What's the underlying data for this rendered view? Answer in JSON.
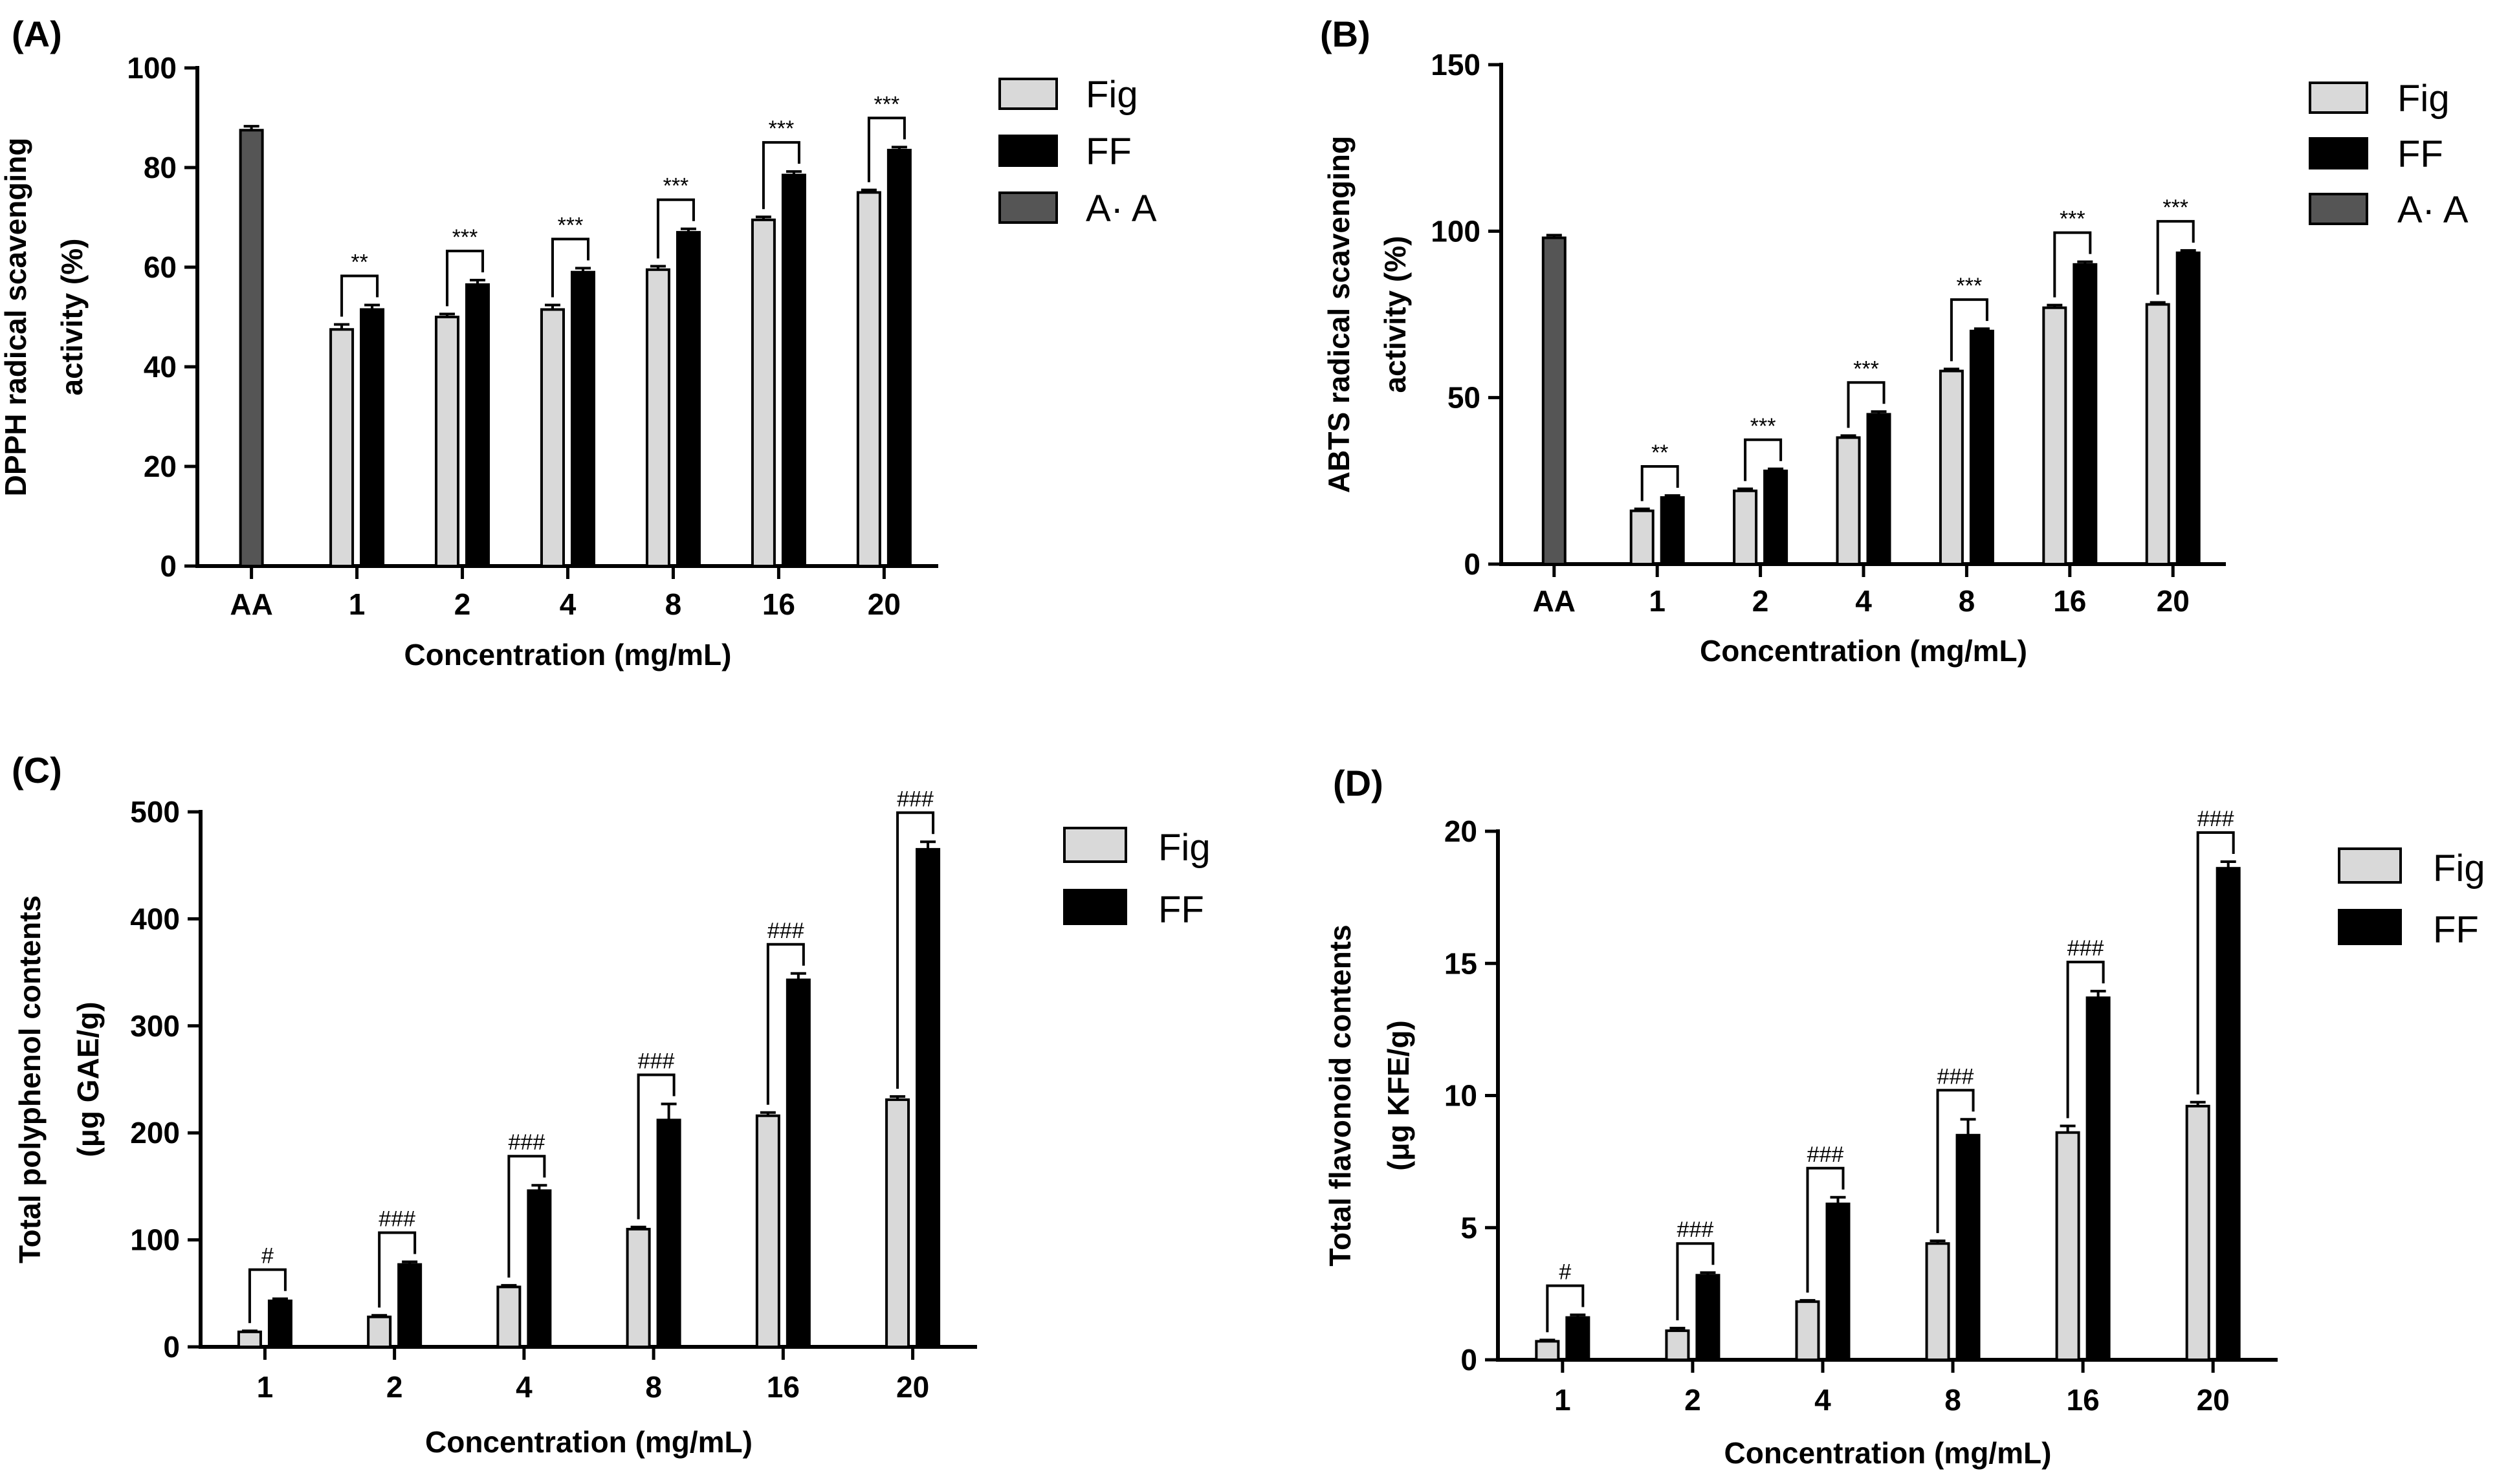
{
  "colors": {
    "Fig": "#d9d9d9",
    "FF": "#000000",
    "A· A": "#555555"
  },
  "chart_data": [
    {
      "panel": "(A)",
      "type": "bar",
      "title": "",
      "xlabel": "Concentration (mg/mL)",
      "ylabel_lines": [
        "DPPH radical scavenging",
        "activity (%)"
      ],
      "ylim": [
        0,
        100
      ],
      "yticks": [
        0,
        20,
        40,
        60,
        80,
        100
      ],
      "categories": [
        "AA",
        "1",
        "2",
        "4",
        "8",
        "16",
        "20"
      ],
      "legend": [
        "Fig",
        "FF",
        "A· A"
      ],
      "legend_position": "top-right",
      "reference": {
        "name": "A· A",
        "category": "AA",
        "value": 87.5,
        "error": 0.8
      },
      "series": [
        {
          "name": "Fig",
          "values": [
            null,
            47.5,
            50.0,
            51.5,
            59.5,
            69.5,
            75.0
          ],
          "errors": [
            null,
            1.0,
            0.6,
            0.9,
            0.7,
            0.6,
            0.5
          ]
        },
        {
          "name": "FF",
          "values": [
            null,
            51.5,
            56.5,
            59.0,
            67.0,
            78.5,
            83.5
          ],
          "errors": [
            null,
            0.9,
            0.9,
            0.8,
            0.7,
            0.7,
            0.6
          ]
        }
      ],
      "significance": [
        null,
        "**",
        "***",
        "***",
        "***",
        "***",
        "***"
      ]
    },
    {
      "panel": "(B)",
      "type": "bar",
      "title": "",
      "xlabel": "Concentration (mg/mL)",
      "ylabel_lines": [
        "ABTS radical scavenging",
        "activity (%)"
      ],
      "ylim": [
        0,
        150
      ],
      "yticks": [
        0,
        50,
        100,
        150
      ],
      "categories": [
        "AA",
        "1",
        "2",
        "4",
        "8",
        "16",
        "20"
      ],
      "legend": [
        "Fig",
        "FF",
        "A· A"
      ],
      "legend_position": "top-right",
      "reference": {
        "name": "A· A",
        "category": "AA",
        "value": 98,
        "error": 0.8
      },
      "series": [
        {
          "name": "Fig",
          "values": [
            null,
            16,
            22,
            38,
            58,
            77,
            78
          ],
          "errors": [
            null,
            0.6,
            0.6,
            0.6,
            0.6,
            0.8,
            0.6
          ]
        },
        {
          "name": "FF",
          "values": [
            null,
            20,
            28,
            45,
            70,
            90,
            93.5
          ],
          "errors": [
            null,
            0.6,
            0.6,
            0.8,
            0.7,
            0.8,
            0.7
          ]
        }
      ],
      "significance": [
        null,
        "**",
        "***",
        "***",
        "***",
        "***",
        "***"
      ]
    },
    {
      "panel": "(C)",
      "type": "bar",
      "title": "",
      "xlabel": "Concentration (mg/mL)",
      "ylabel_lines": [
        "Total polyphenol contents",
        "(μg GAE/g)"
      ],
      "ylim": [
        0,
        500
      ],
      "yticks": [
        0,
        100,
        200,
        300,
        400,
        500
      ],
      "categories": [
        "1",
        "2",
        "4",
        "8",
        "16",
        "20"
      ],
      "legend": [
        "Fig",
        "FF"
      ],
      "legend_position": "top-right",
      "series": [
        {
          "name": "Fig",
          "values": [
            14,
            28,
            56,
            110,
            216,
            231
          ],
          "errors": [
            1.0,
            1.5,
            1.5,
            2.0,
            3.0,
            3.0
          ]
        },
        {
          "name": "FF",
          "values": [
            43,
            77,
            146,
            212,
            343,
            465
          ],
          "errors": [
            2.0,
            2.5,
            5.0,
            15.0,
            6.0,
            7.0
          ]
        }
      ],
      "significance": [
        "#",
        "###",
        "###",
        "###",
        "###",
        "###"
      ]
    },
    {
      "panel": "(D)",
      "type": "bar",
      "title": "",
      "xlabel": "Concentration (mg/mL)",
      "ylabel_lines": [
        "Total flavonoid contents",
        "(μg KFE/g)"
      ],
      "ylim": [
        0,
        20
      ],
      "yticks": [
        0,
        5,
        10,
        15,
        20
      ],
      "categories": [
        "1",
        "2",
        "4",
        "8",
        "16",
        "20"
      ],
      "legend": [
        "Fig",
        "FF"
      ],
      "legend_position": "top-right",
      "series": [
        {
          "name": "Fig",
          "values": [
            0.7,
            1.1,
            2.2,
            4.4,
            8.6,
            9.6
          ],
          "errors": [
            0.05,
            0.1,
            0.05,
            0.1,
            0.25,
            0.15
          ]
        },
        {
          "name": "FF",
          "values": [
            1.6,
            3.2,
            5.9,
            8.5,
            13.7,
            18.6
          ],
          "errors": [
            0.1,
            0.1,
            0.25,
            0.6,
            0.25,
            0.25
          ]
        }
      ],
      "significance": [
        "#",
        "###",
        "###",
        "###",
        "###",
        "###"
      ]
    }
  ]
}
